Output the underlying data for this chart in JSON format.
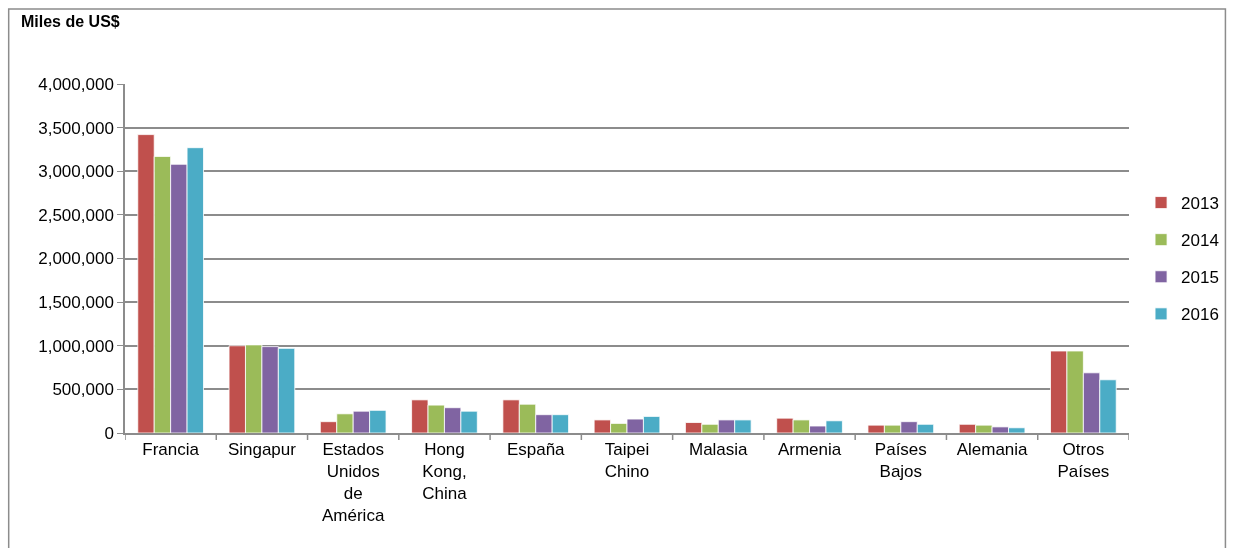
{
  "chart_data": {
    "type": "bar",
    "ylabel": "Miles de US$",
    "categories": [
      "Francia",
      "Singapur",
      "Estados Unidos de América",
      "Hong Kong, China",
      "España",
      "Taipei Chino",
      "Malasia",
      "Armenia",
      "Países Bajos",
      "Alemania",
      "Otros Países"
    ],
    "series": [
      {
        "name": "2013",
        "color": "#c0504d",
        "values": [
          3420000,
          1000000,
          130000,
          380000,
          380000,
          150000,
          120000,
          170000,
          90000,
          100000,
          940000
        ]
      },
      {
        "name": "2014",
        "color": "#9bbb59",
        "values": [
          3170000,
          1010000,
          220000,
          320000,
          330000,
          110000,
          100000,
          150000,
          90000,
          90000,
          940000
        ]
      },
      {
        "name": "2015",
        "color": "#8064a2",
        "values": [
          3080000,
          990000,
          250000,
          290000,
          210000,
          160000,
          150000,
          80000,
          130000,
          70000,
          690000
        ]
      },
      {
        "name": "2016",
        "color": "#4bacc6",
        "values": [
          3270000,
          970000,
          260000,
          250000,
          210000,
          190000,
          150000,
          140000,
          100000,
          60000,
          610000
        ]
      }
    ],
    "ylim": [
      0,
      4000000
    ],
    "yticks": [
      0,
      {
        "value": 500000,
        "label": "500,000"
      },
      {
        "value": 1000000,
        "label": "1,000,000"
      },
      {
        "value": 1500000,
        "label": "1,500,000"
      },
      {
        "value": 2000000,
        "label": "2,000,000"
      },
      {
        "value": 2500000,
        "label": "2,500,000"
      },
      {
        "value": 3000000,
        "label": "3,000,000"
      },
      {
        "value": 3500000,
        "label": "3,500,000"
      },
      {
        "value": 4000000,
        "label": "4,000,000"
      }
    ],
    "grid": "y",
    "legend": "right"
  }
}
